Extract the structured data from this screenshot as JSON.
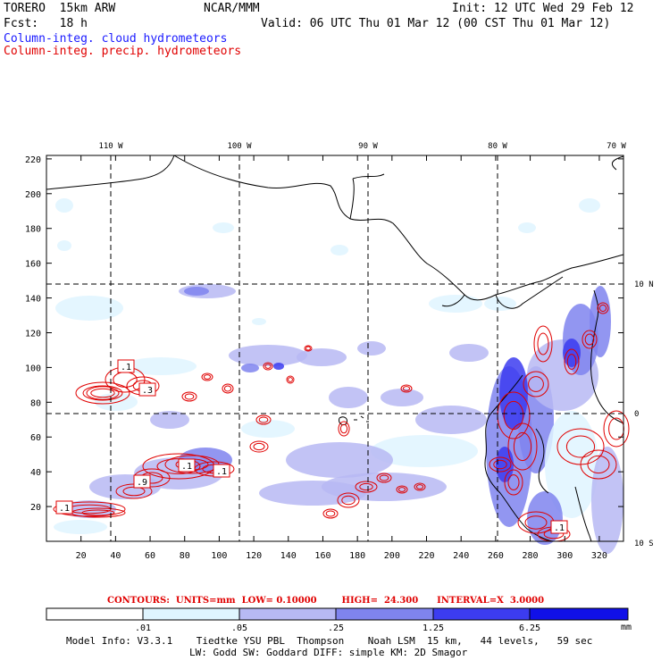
{
  "header": {
    "model_name": "TORERO  15km ARW",
    "center": "NCAR/MMM",
    "init": "Init: 12 UTC Wed 29 Feb 12",
    "fcst": "Fcst:   18 h",
    "valid": "Valid: 06 UTC Thu 01 Mar 12 (00 CST Thu 01 Mar 12)",
    "field_cloud": "Column-integ. cloud hydrometeors",
    "field_precip": "Column-integ. precip. hydrometeors"
  },
  "colors": {
    "cloud_legend": "#1a1aff",
    "precip_contour": "#e00000",
    "shade_1": "#dff5ff",
    "shade_2": "#b7b9f3",
    "shade_3": "#7f84ee",
    "shade_4": "#3c3cf0",
    "shade_5": "#1010e8",
    "coast": "#000000"
  },
  "map": {
    "grid_x_ticks": [
      "20",
      "40",
      "60",
      "80",
      "100",
      "120",
      "140",
      "160",
      "180",
      "200",
      "220",
      "240",
      "260",
      "280",
      "300",
      "320"
    ],
    "grid_y_ticks": [
      "20",
      "40",
      "60",
      "80",
      "100",
      "120",
      "140",
      "160",
      "180",
      "200",
      "220"
    ],
    "lon_labels": [
      "110 W",
      "100 W",
      "90 W",
      "80 W",
      "70 W"
    ],
    "lat_labels": [
      "10 N",
      "0",
      "10 S"
    ],
    "contour_labels": [
      ".1",
      ".3",
      ".1",
      ".9",
      ".1",
      ".1",
      ".1"
    ]
  },
  "footer": {
    "contours": "CONTOURS:  UNITS=mm  LOW= 0.10000        HIGH=  24.300      INTERVAL=X  3.0000",
    "legend_values": [
      ".01",
      ".05",
      ".25",
      "1.25",
      "6.25"
    ],
    "legend_units": "mm",
    "model_info_1": "Model Info: V3.3.1    Tiedtke YSU PBL  Thompson    Noah LSM  15 km,   44 levels,   59 sec",
    "model_info_2": "LW: Godd SW: Goddard DIFF: simple KM: 2D Smagor"
  }
}
